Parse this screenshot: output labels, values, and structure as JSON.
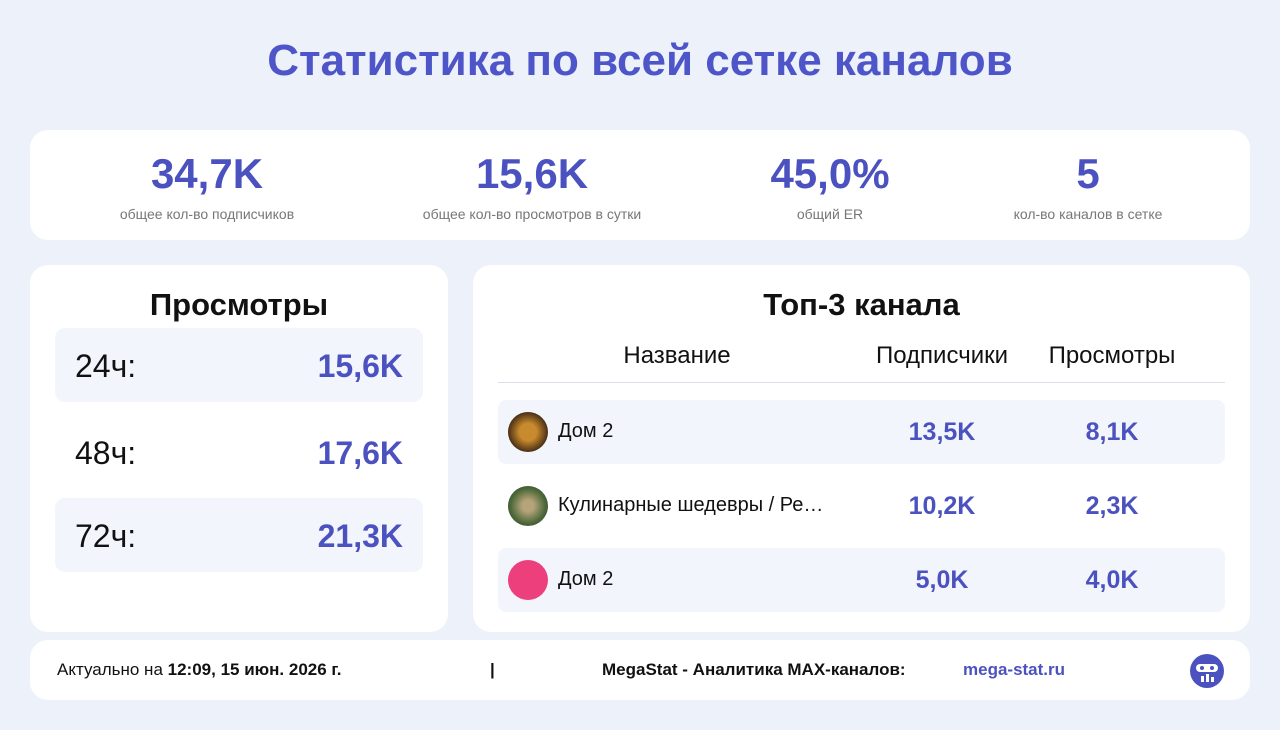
{
  "title": "Статистика по всей сетке каналов",
  "stats": [
    {
      "value": "34,7K",
      "label": "общее кол-во подписчиков"
    },
    {
      "value": "15,6K",
      "label": "общее кол-во просмотров в сутки"
    },
    {
      "value": "45,0%",
      "label": "общий ER"
    },
    {
      "value": "5",
      "label": "кол-во каналов в сетке"
    }
  ],
  "views": {
    "title": "Просмотры",
    "rows": [
      {
        "period": "24ч:",
        "value": "15,6K"
      },
      {
        "period": "48ч:",
        "value": "17,6K"
      },
      {
        "period": "72ч:",
        "value": "21,3K"
      }
    ]
  },
  "top": {
    "title": "Топ-3 канала",
    "columns": [
      "Название",
      "Подписчики",
      "Просмотры"
    ],
    "rows": [
      {
        "name": "Дом 2",
        "subscribers": "13,5K",
        "views": "8,1K"
      },
      {
        "name": "Кулинарные шедевры / Ре…",
        "subscribers": "10,2K",
        "views": "2,3K"
      },
      {
        "name": "Дом 2",
        "subscribers": "5,0K",
        "views": "4,0K"
      }
    ]
  },
  "footer": {
    "prefix": "Актуально на",
    "date": "12:09, 15 июн. 2026 г.",
    "separator": "|",
    "brand": "MegaStat - Аналитика MAX-каналов:",
    "link": "mega-stat.ru"
  }
}
